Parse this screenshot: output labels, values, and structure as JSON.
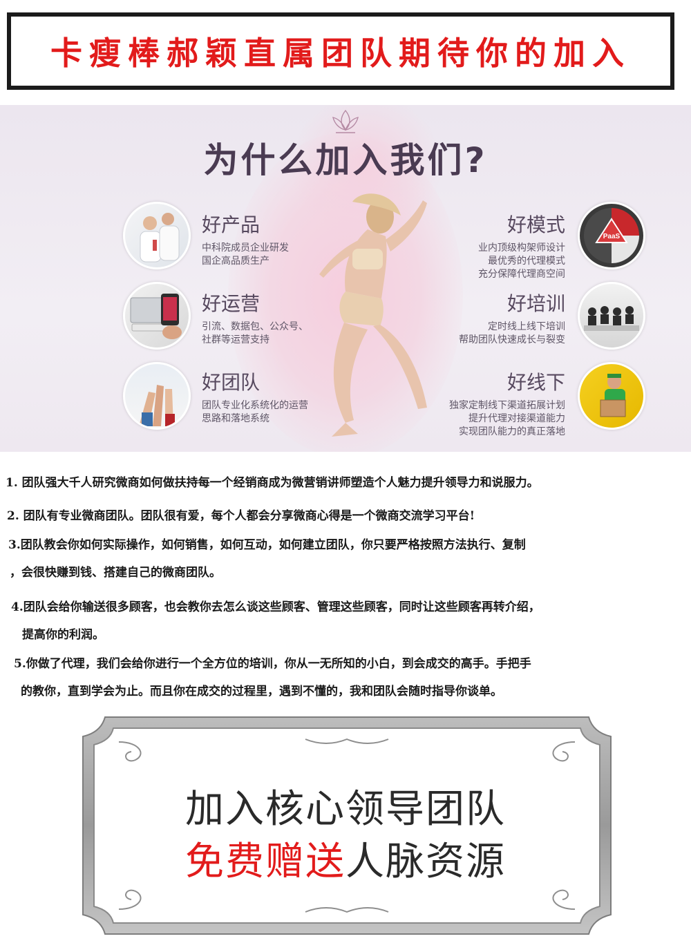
{
  "banner": {
    "title": "卡瘦棒郝颖直属团队期待你的加入"
  },
  "promo": {
    "title": "为什么加入我们?",
    "features_left": [
      {
        "title": "好产品",
        "desc": [
          "中科院成员企业研发",
          "国企高品质生产"
        ]
      },
      {
        "title": "好运营",
        "desc": [
          "引流、数据包、公众号、",
          "社群等运营支持"
        ]
      },
      {
        "title": "好团队",
        "desc": [
          "团队专业化系统化的运营",
          "思路和落地系统"
        ]
      }
    ],
    "features_right": [
      {
        "title": "好模式",
        "desc": [
          "业内顶级构架师设计",
          "最优秀的代理模式",
          "充分保障代理商空间"
        ]
      },
      {
        "title": "好培训",
        "desc": [
          "定时线上线下培训",
          "帮助团队快速成长与裂变"
        ]
      },
      {
        "title": "好线下",
        "desc": [
          "独家定制线下渠道拓展计划",
          "提升代理对接渠道能力",
          "实现团队能力的真正落地"
        ]
      }
    ],
    "paas_label": "PaaS"
  },
  "list": {
    "item1": "1. 团队强大千人研究微商如何做扶持每一个经销商成为微营销讲师塑造个人魅力提升领导力和说服力。",
    "item2": "2. 团队有专业微商团队。团队很有爱，每个人都会分享微商心得是一个微商交流学习平台!",
    "item3a": "3.团队教会你如何实际操作，如何销售，如何互动，如何建立团队，你只要严格按照方法执行、复制",
    "item3b": "，会很快赚到钱、搭建自己的微商团队。",
    "item4a": "4.团队会给你输送很多顾客，也会教你去怎么谈这些顾客、管理这些顾客，同时让这些顾客再转介绍，",
    "item4b": "提高你的利润。",
    "item5a": "5.你做了代理，我们会给你进行一个全方位的培训，你从一无所知的小白，到会成交的高手。手把手",
    "item5b": "的教你，直到学会为止。而且你在成交的过程里，遇到不懂的，我和团队会随时指导你谈单。"
  },
  "cta": {
    "line1": "加入核心领导团队",
    "line2_red": "免费赠送",
    "line2_dark": "人脉资源"
  },
  "colors": {
    "accent_red": "#e21b1b",
    "promo_bg": "#ece6ef",
    "title_purple": "#4a3b52"
  }
}
